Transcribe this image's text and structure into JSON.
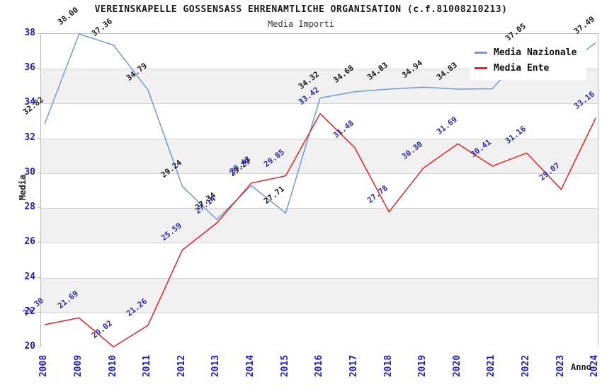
{
  "chart_data": {
    "type": "line",
    "title": "VEREINSKAPELLE GOSSENSASS EHRENAMTLICHE ORGANISATION (c.f.81008210213)",
    "subtitle": "Media Importi",
    "xlabel": "Anno",
    "ylabel": "Media",
    "categories": [
      "2008",
      "2009",
      "2010",
      "2011",
      "2012",
      "2013",
      "2014",
      "2015",
      "2016",
      "2017",
      "2018",
      "2019",
      "2020",
      "2021",
      "2022",
      "2023",
      "2024"
    ],
    "ylim": [
      20,
      38
    ],
    "ytick_step": 2,
    "grid": "horizontal-bands",
    "legend_position": "top-right",
    "series": [
      {
        "name": "Media Nazionale",
        "color": "#6c9bd2",
        "label_color": "#1a1a1a",
        "values": [
          32.82,
          38.0,
          37.36,
          34.79,
          29.24,
          27.34,
          29.29,
          27.71,
          34.32,
          34.68,
          34.83,
          34.94,
          34.83,
          34.85,
          37.05,
          36.0,
          37.49
        ],
        "labels": [
          "32.82",
          "38.00",
          "37.36",
          "34.79",
          "29.24",
          "27.34",
          "29.29",
          "27.71",
          "34.32",
          "34.68",
          "34.83",
          "34.94",
          "34.83",
          "34.85",
          "37.05",
          "",
          "37.49"
        ]
      },
      {
        "name": "Media Ente",
        "color": "#e02222",
        "label_color": "#2b2ba8",
        "values": [
          21.3,
          21.69,
          20.02,
          21.26,
          25.59,
          27.14,
          29.43,
          29.85,
          33.42,
          31.48,
          27.78,
          30.3,
          31.69,
          30.41,
          31.16,
          29.07,
          33.16
        ],
        "labels": [
          "21.30",
          "21.69",
          "20.02",
          "21.26",
          "25.59",
          "27.14",
          "29.43",
          "29.85",
          "33.42",
          "31.48",
          "27.78",
          "30.30",
          "31.69",
          "30.41",
          "31.16",
          "29.07",
          "33.16"
        ]
      }
    ],
    "legend": {
      "entries": [
        {
          "label": "Media Nazionale",
          "color": "#6c9bd2"
        },
        {
          "label": "Media Ente",
          "color": "#e02222"
        }
      ]
    },
    "style_colors": {
      "band_gray": "#f0f0f0",
      "band_white": "#ffffff",
      "gridline": "#d4d4d4",
      "axis_border": "#b9b9b9",
      "tick_label_blue": "#1b1bd1",
      "title_black": "#1a1a1a"
    }
  }
}
